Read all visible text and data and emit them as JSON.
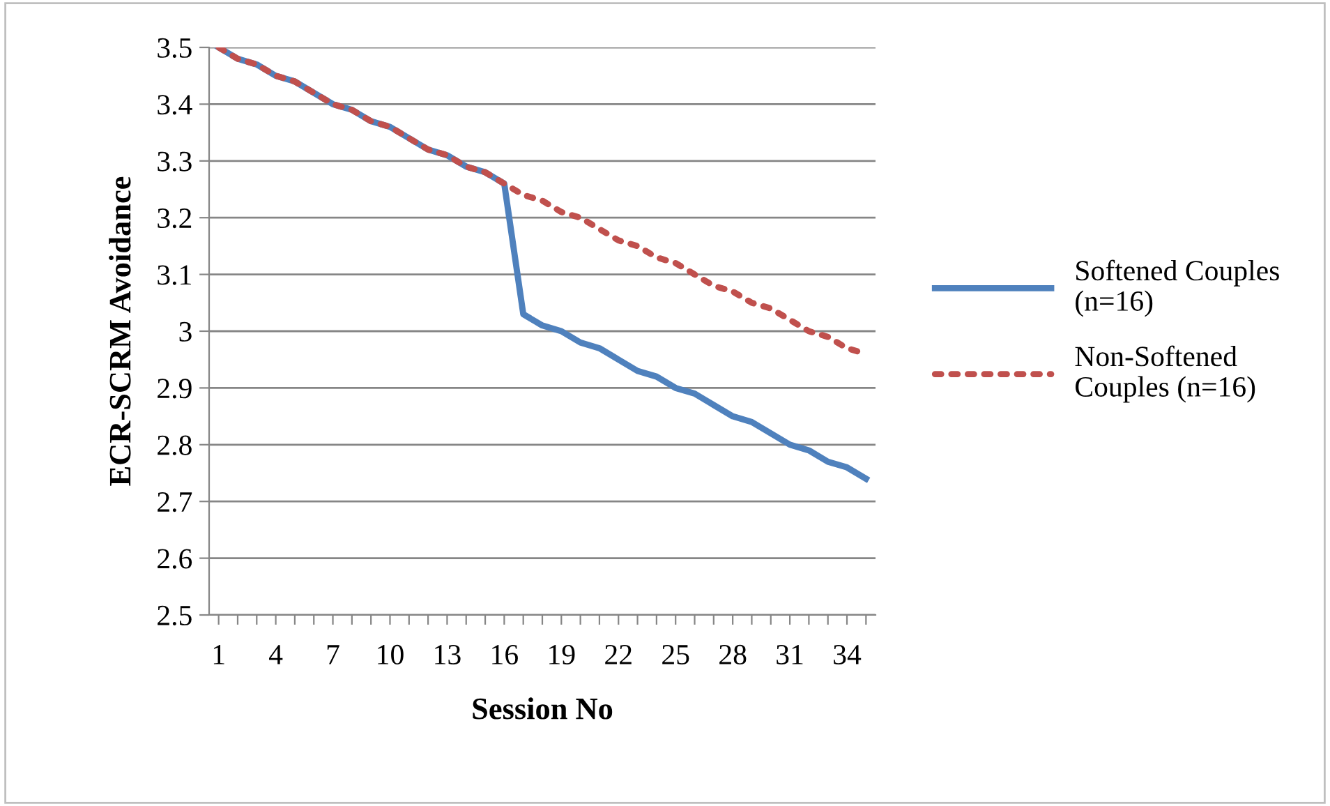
{
  "chart_data": {
    "type": "line",
    "xlabel": "Session No",
    "ylabel": "ECR-SCRM Avoidance",
    "categories": [
      "1",
      null,
      null,
      "4",
      null,
      null,
      "7",
      null,
      null,
      "10",
      null,
      null,
      "13",
      null,
      null,
      "16",
      null,
      null,
      "19",
      null,
      null,
      "22",
      null,
      null,
      "25",
      null,
      null,
      "28",
      null,
      null,
      "31",
      null,
      null,
      "34",
      null
    ],
    "series": [
      {
        "name": "Softened Couples (n=16)",
        "color": "#4f81bd",
        "line_style": "solid",
        "values": [
          3.5,
          3.48,
          3.47,
          3.45,
          3.44,
          3.42,
          3.4,
          3.39,
          3.37,
          3.36,
          3.34,
          3.32,
          3.31,
          3.29,
          3.28,
          3.26,
          3.03,
          3.01,
          3.0,
          2.98,
          2.97,
          2.95,
          2.93,
          2.92,
          2.9,
          2.89,
          2.87,
          2.85,
          2.84,
          2.82,
          2.8,
          2.79,
          2.77,
          2.76,
          2.74
        ]
      },
      {
        "name": "Non-Softened Couples (n=16)",
        "color": "#c0504d",
        "line_style": "dotted",
        "values": [
          3.5,
          3.48,
          3.47,
          3.45,
          3.44,
          3.42,
          3.4,
          3.39,
          3.37,
          3.36,
          3.34,
          3.32,
          3.31,
          3.29,
          3.28,
          3.26,
          3.24,
          3.23,
          3.21,
          3.2,
          3.18,
          3.16,
          3.15,
          3.13,
          3.12,
          3.1,
          3.08,
          3.07,
          3.05,
          3.04,
          3.02,
          3.0,
          2.99,
          2.97,
          2.96
        ]
      }
    ],
    "ylim": [
      2.5,
      3.5
    ],
    "yticks": [
      2.5,
      2.6,
      2.7,
      2.8,
      2.9,
      3,
      3.1,
      3.2,
      3.3,
      3.4,
      3.5
    ],
    "grid": "y",
    "legend": "right",
    "marker": "none"
  }
}
